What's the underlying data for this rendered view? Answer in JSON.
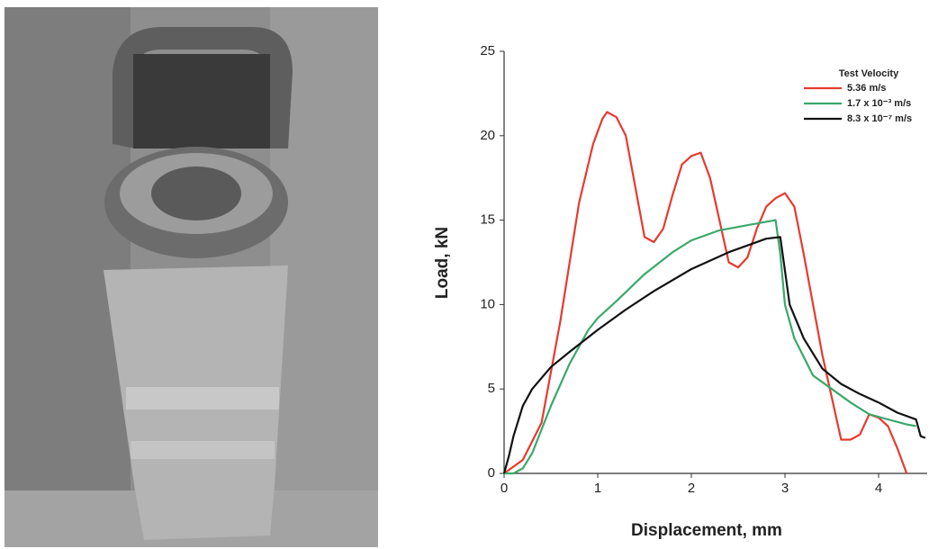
{
  "chart_data": {
    "type": "line",
    "xlabel": "Displacement, mm",
    "ylabel": "Load, kN",
    "legend_title": "Test Velocity",
    "legend": "upper right",
    "grid": false,
    "xlim": [
      0,
      4.5
    ],
    "ylim": [
      0,
      25
    ],
    "xticks": [
      0,
      1,
      2,
      3,
      4
    ],
    "yticks": [
      0,
      5,
      10,
      15,
      20,
      25
    ],
    "series": [
      {
        "name": "5.36 m/s",
        "color": "#e63a30",
        "x": [
          0,
          0.2,
          0.4,
          0.6,
          0.8,
          0.95,
          1.05,
          1.1,
          1.2,
          1.3,
          1.4,
          1.5,
          1.6,
          1.7,
          1.8,
          1.9,
          2.0,
          2.1,
          2.2,
          2.3,
          2.4,
          2.5,
          2.6,
          2.7,
          2.8,
          2.9,
          3.0,
          3.1,
          3.2,
          3.3,
          3.4,
          3.5,
          3.6,
          3.7,
          3.8,
          3.9,
          4.0,
          4.1,
          4.2,
          4.3
        ],
        "values": [
          0,
          0.8,
          3,
          9,
          16,
          19.5,
          21,
          21.4,
          21.1,
          20,
          17,
          14,
          13.7,
          14.5,
          16.5,
          18.3,
          18.8,
          19,
          17.5,
          15,
          12.5,
          12.2,
          12.8,
          14.5,
          15.8,
          16.3,
          16.6,
          15.8,
          13,
          10,
          7,
          4.5,
          2,
          2,
          2.3,
          3.5,
          3.3,
          2.8,
          1.5,
          0
        ]
      },
      {
        "name": "1.7 x 10⁻³ m/s",
        "color": "#3aa86b",
        "x": [
          0,
          0.1,
          0.2,
          0.3,
          0.5,
          0.7,
          0.9,
          1.0,
          1.2,
          1.5,
          1.8,
          2.0,
          2.3,
          2.6,
          2.9,
          2.95,
          3.0,
          3.1,
          3.3,
          3.5,
          3.7,
          3.9,
          4.1,
          4.3,
          4.4
        ],
        "values": [
          0,
          0,
          0.3,
          1.2,
          4,
          6.5,
          8.5,
          9.2,
          10.2,
          11.8,
          13.1,
          13.8,
          14.4,
          14.7,
          15,
          13,
          10,
          8,
          5.8,
          5,
          4.2,
          3.5,
          3.2,
          2.9,
          2.8
        ]
      },
      {
        "name": "8.3 x 10⁻⁷ m/s",
        "color": "#111111",
        "x": [
          0,
          0.05,
          0.1,
          0.2,
          0.3,
          0.5,
          0.7,
          1.0,
          1.3,
          1.6,
          2.0,
          2.4,
          2.8,
          2.95,
          3.0,
          3.05,
          3.2,
          3.4,
          3.6,
          3.8,
          4.0,
          4.2,
          4.4,
          4.45,
          4.5
        ],
        "values": [
          0,
          1,
          2.2,
          4,
          5,
          6.3,
          7.2,
          8.5,
          9.7,
          10.8,
          12.1,
          13.1,
          13.9,
          14,
          12,
          10,
          8,
          6.2,
          5.3,
          4.7,
          4.2,
          3.6,
          3.2,
          2.2,
          2.1
        ]
      }
    ]
  }
}
